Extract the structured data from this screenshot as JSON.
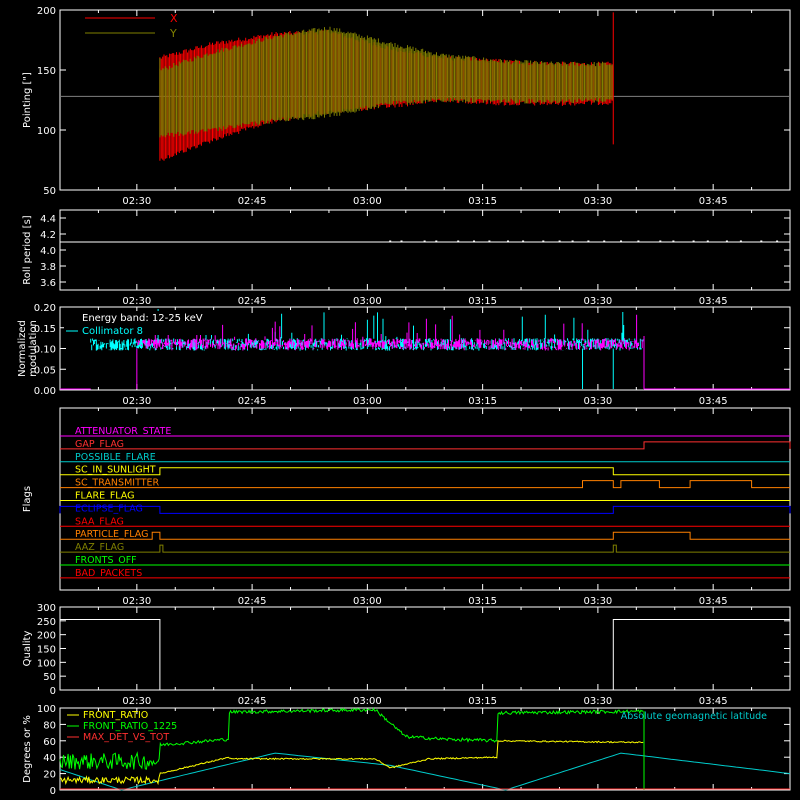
{
  "x_ticks": [
    "02:30",
    "02:45",
    "03:00",
    "03:15",
    "03:30",
    "03:45"
  ],
  "chart_data": [
    {
      "type": "line",
      "ylabel": "Pointing [\"]",
      "ylim": [
        50,
        200
      ],
      "yticks": [
        "50",
        "100",
        "150",
        "200"
      ],
      "legend": [
        "X",
        "Y"
      ],
      "colors": {
        "X": "#ff0000",
        "Y": "#808000",
        "reference": "#808080"
      },
      "reference_value": 128,
      "series": [
        {
          "name": "X",
          "x": [
            "02:33",
            "02:40",
            "02:48",
            "02:55",
            "03:03",
            "03:10",
            "03:18",
            "03:25",
            "03:32"
          ],
          "upper": [
            160,
            172,
            180,
            182,
            168,
            160,
            157,
            155,
            155
          ],
          "lower": [
            75,
            92,
            108,
            115,
            120,
            125,
            122,
            122,
            123
          ]
        },
        {
          "name": "Y",
          "x": [
            "02:33",
            "02:40",
            "02:48",
            "02:55",
            "03:03",
            "03:10",
            "03:18",
            "03:25",
            "03:32"
          ],
          "upper": [
            150,
            165,
            178,
            185,
            172,
            162,
            157,
            155,
            155
          ],
          "lower": [
            95,
            100,
            108,
            112,
            122,
            125,
            124,
            124,
            125
          ]
        }
      ]
    },
    {
      "type": "line",
      "ylabel": "Roll period [s]",
      "ylim": [
        3.5,
        4.5
      ],
      "yticks": [
        "3.6",
        "3.8",
        "4.0",
        "4.2",
        "4.4"
      ],
      "series": [
        {
          "name": "",
          "value": 4.1
        }
      ]
    },
    {
      "type": "line",
      "ylabel_lines": [
        "Normalized",
        "modulation"
      ],
      "ylim": [
        0,
        0.2
      ],
      "yticks": [
        "0.00",
        "0.05",
        "0.10",
        "0.15",
        "0.20"
      ],
      "annotations": [
        "Energy band: 12-25 keV",
        "Collimator 8"
      ],
      "colors": {
        "modulation": "#ff00ff",
        "collimator": "#00ffff"
      },
      "data_start": "02:24",
      "data_end": "03:36",
      "baseline_level": 0.11
    },
    {
      "type": "line",
      "ylabel": "Flags",
      "flags": [
        {
          "name": "ATTENUATOR_STATE",
          "color": "#ff00ff",
          "changes": []
        },
        {
          "name": "GAP_FLAG",
          "color": "#ff3030",
          "changes": [
            {
              "from": "03:36",
              "to": "03:55"
            }
          ]
        },
        {
          "name": "POSSIBLE_FLARE",
          "color": "#00cccc",
          "changes": []
        },
        {
          "name": "SC_IN_SUNLIGHT",
          "color": "#ffff00",
          "changes": [
            {
              "from": "02:33",
              "to": "03:32"
            }
          ]
        },
        {
          "name": "SC_TRANSMITTER",
          "color": "#ff8000",
          "changes": [
            {
              "from": "03:28",
              "to": "03:32"
            },
            {
              "from": "03:33",
              "to": "03:38"
            },
            {
              "from": "03:42",
              "to": "03:50"
            }
          ]
        },
        {
          "name": "FLARE_FLAG",
          "color": "#ffff00",
          "changes": []
        },
        {
          "name": "ECLIPSE_FLAG",
          "color": "#0000ff",
          "changes": [
            {
              "from": "02:20",
              "to": "02:33"
            },
            {
              "from": "03:32",
              "to": "03:55"
            }
          ]
        },
        {
          "name": "SAA_FLAG",
          "color": "#ff0000",
          "changes": []
        },
        {
          "name": "PARTICLE_FLAG",
          "color": "#ff8000",
          "changes": [
            {
              "from": "02:32",
              "to": "02:33"
            },
            {
              "from": "03:32",
              "to": "03:42"
            }
          ]
        },
        {
          "name": "AAZ_FLAG",
          "color": "#808000",
          "changes": [
            {
              "from": "02:33",
              "to": "02:33"
            },
            {
              "from": "03:32",
              "to": "03:32"
            }
          ]
        },
        {
          "name": "FRONTS_OFF",
          "color": "#00ff00",
          "changes": []
        },
        {
          "name": "BAD_PACKETS",
          "color": "#ff0000",
          "changes": []
        }
      ]
    },
    {
      "type": "line",
      "ylabel": "Quality",
      "ylim": [
        0,
        300
      ],
      "yticks": [
        "0",
        "50",
        "100",
        "150",
        "200",
        "250",
        "300"
      ],
      "series": [
        {
          "name": "",
          "x": [
            "02:20",
            "02:33",
            "02:33",
            "03:32",
            "03:32",
            "03:55"
          ],
          "y": [
            255,
            255,
            0,
            0,
            255,
            255
          ]
        }
      ]
    },
    {
      "type": "line",
      "ylabel": "Degrees or %",
      "ylim": [
        0,
        100
      ],
      "yticks": [
        "0",
        "20",
        "40",
        "60",
        "80",
        "100"
      ],
      "legend": [
        "FRONT_RATIO",
        "FRONT_RATIO_1225",
        "MAX_DET_VS_TOT"
      ],
      "annotation": "Absolute geomagnetic latitude",
      "colors": {
        "FRONT_RATIO": "#ffff00",
        "FRONT_RATIO_1225": "#00ff00",
        "MAX_DET_VS_TOT": "#ff3030",
        "latitude": "#00cccc"
      },
      "series": [
        {
          "name": "FRONT_RATIO",
          "x": [
            "02:20",
            "02:33",
            "02:33",
            "02:42",
            "02:42",
            "03:01",
            "03:01",
            "03:03",
            "03:08",
            "03:17",
            "03:17",
            "03:36"
          ],
          "y": [
            12,
            12,
            20,
            40,
            38,
            38,
            38,
            27,
            38,
            40,
            60,
            58
          ]
        },
        {
          "name": "FRONT_RATIO_1225",
          "x": [
            "02:20",
            "02:33",
            "02:33",
            "02:42",
            "02:42",
            "03:01",
            "03:01",
            "03:05",
            "03:10",
            "03:17",
            "03:17",
            "03:36"
          ],
          "y": [
            35,
            35,
            55,
            62,
            95,
            98,
            98,
            65,
            62,
            60,
            94,
            96
          ]
        },
        {
          "name": "Absolute geomagnetic latitude",
          "x": [
            "02:20",
            "02:28",
            "02:48",
            "03:03",
            "03:18",
            "03:33",
            "03:55"
          ],
          "y": [
            25,
            0,
            45,
            30,
            0,
            45,
            20
          ]
        }
      ]
    }
  ]
}
